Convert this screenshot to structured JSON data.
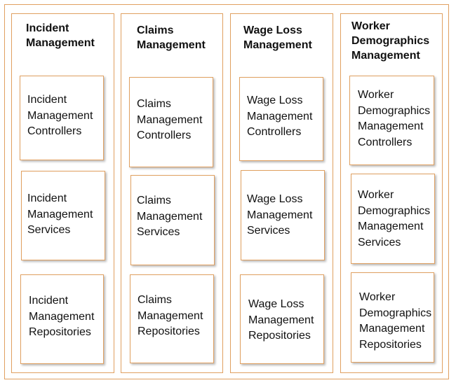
{
  "diagram": {
    "columns": [
      {
        "title": "Incident\nManagement",
        "boxes": [
          {
            "label": "Incident\nManagement\nControllers"
          },
          {
            "label": "Incident\nManagement\nServices"
          },
          {
            "label": "Incident\nManagement\nRepositories"
          }
        ]
      },
      {
        "title": "Claims\nManagement",
        "boxes": [
          {
            "label": "Claims\nManagement\nControllers"
          },
          {
            "label": "Claims\nManagement\nServices"
          },
          {
            "label": "Claims\nManagement\nRepositories"
          }
        ]
      },
      {
        "title": "Wage Loss\nManagement",
        "boxes": [
          {
            "label": "Wage Loss\nManagement\nControllers"
          },
          {
            "label": "Wage Loss\nManagement\nServices"
          },
          {
            "label": "Wage Loss\nManagement\nRepositories"
          }
        ]
      },
      {
        "title": "Worker\nDemographics\nManagement",
        "boxes": [
          {
            "label": "Worker\nDemographics\nManagement\nControllers"
          },
          {
            "label": "Worker\nDemographics\nManagement\nServices"
          },
          {
            "label": "Worker\nDemographics\nManagement\nRepositories"
          }
        ]
      }
    ],
    "colors": {
      "border": "#e0a060",
      "text": "#111111"
    }
  }
}
